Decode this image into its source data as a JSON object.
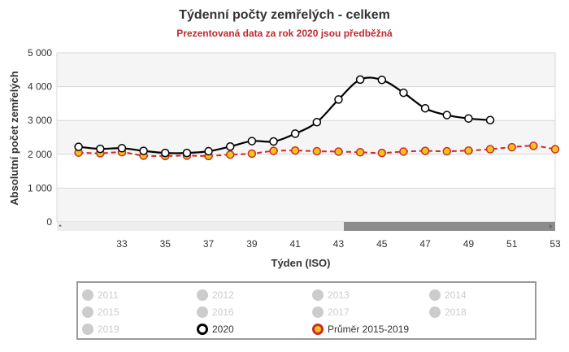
{
  "chart_data": {
    "type": "line",
    "title": "Týdenní počty zemřelých - celkem",
    "subtitle": "Prezentovaná data za rok 2020 jsou předběžná",
    "xlabel": "Týden (ISO)",
    "ylabel": "Absolutní počet zemřelých",
    "xlim": [
      30,
      53
    ],
    "ylim": [
      0,
      5000
    ],
    "x_ticks": [
      33,
      35,
      37,
      39,
      41,
      43,
      45,
      47,
      49,
      51,
      53
    ],
    "y_ticks": [
      0,
      1000,
      2000,
      3000,
      4000,
      5000
    ],
    "y_tick_labels": [
      "0",
      "1 000",
      "2 000",
      "3 000",
      "4 000",
      "5 000"
    ],
    "grid": "horizontal",
    "x": [
      31,
      32,
      33,
      34,
      35,
      36,
      37,
      38,
      39,
      40,
      41,
      42,
      43,
      44,
      45,
      46,
      47,
      48,
      49,
      50,
      51,
      52,
      53
    ],
    "series": [
      {
        "name": "2020",
        "color": "#000000",
        "values": [
          2220,
          2160,
          2180,
          2100,
          2040,
          2040,
          2090,
          2230,
          2390,
          2380,
          2610,
          2950,
          3620,
          4210,
          4200,
          3820,
          3360,
          3160,
          3060,
          3010,
          null,
          null,
          null
        ]
      },
      {
        "name": "Průměr 2015-2019",
        "color": "#d02a2a",
        "fill": "#f0c419",
        "dashed": true,
        "values": [
          2050,
          2030,
          2060,
          1960,
          1950,
          1960,
          1950,
          1990,
          2020,
          2100,
          2110,
          2090,
          2080,
          2060,
          2040,
          2080,
          2100,
          2090,
          2110,
          2150,
          2210,
          2250,
          2150
        ]
      }
    ]
  },
  "legend": {
    "items": [
      {
        "label": "2011",
        "active": false
      },
      {
        "label": "2012",
        "active": false
      },
      {
        "label": "2013",
        "active": false
      },
      {
        "label": "2014",
        "active": false
      },
      {
        "label": "2015",
        "active": false
      },
      {
        "label": "2016",
        "active": false
      },
      {
        "label": "2017",
        "active": false
      },
      {
        "label": "2018",
        "active": false
      },
      {
        "label": "2019",
        "active": false
      },
      {
        "label": "2020",
        "active": true,
        "style": "s2020"
      },
      {
        "label": "Průměr 2015-2019",
        "active": true,
        "style": "savg"
      }
    ]
  }
}
